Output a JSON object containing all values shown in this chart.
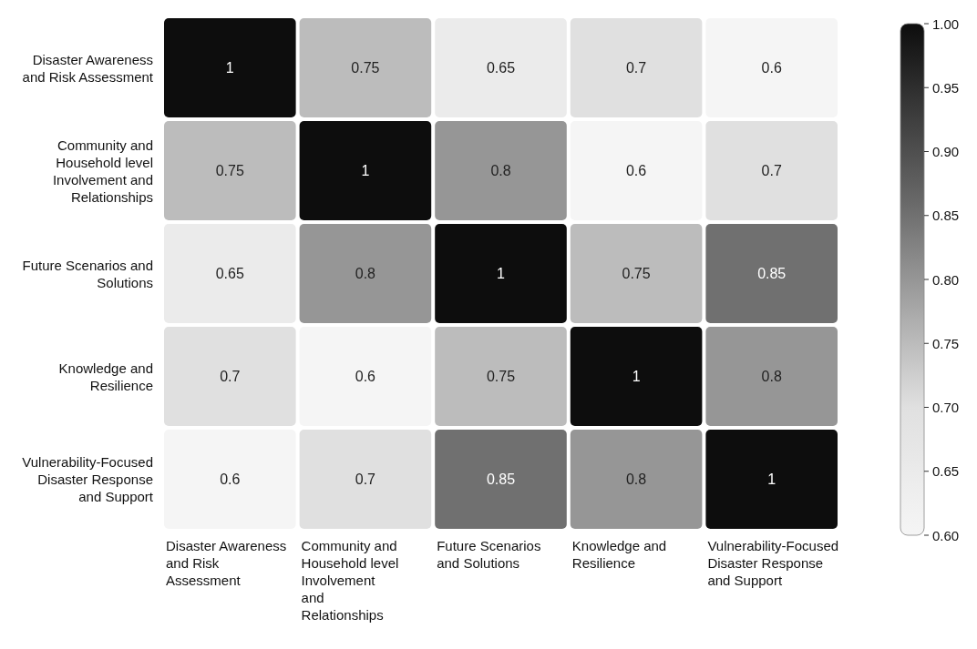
{
  "chart_data": {
    "type": "heatmap",
    "categories": [
      "Disaster Awareness and Risk Assessment",
      "Community and Household level Involvement and Relationships",
      "Future Scenarios and Solutions",
      "Knowledge and Resilience",
      "Vulnerability-Focused Disaster Response and Support"
    ],
    "y_categories": [
      "Disaster Awareness and Risk Assessment",
      "Community and Household level Involvement and Relationships",
      "Future Scenarios and Solutions",
      "Knowledge and Resilience",
      "Vulnerability-Focused Disaster Response and Support"
    ],
    "cells": [
      [
        1,
        0.75,
        0.65,
        0.7,
        0.6
      ],
      [
        0.75,
        1,
        0.8,
        0.6,
        0.7
      ],
      [
        0.65,
        0.8,
        1,
        0.75,
        0.85
      ],
      [
        0.7,
        0.6,
        0.75,
        1,
        0.8
      ],
      [
        0.6,
        0.7,
        0.85,
        0.8,
        1
      ]
    ],
    "data_labels": true,
    "clim": [
      0.6,
      1.0
    ],
    "cticks": [
      {
        "value": 0.6,
        "label": "0.60"
      },
      {
        "value": 0.65,
        "label": "0.65"
      },
      {
        "value": 0.7,
        "label": "0.70"
      },
      {
        "value": 0.75,
        "label": "0.75"
      },
      {
        "value": 0.8,
        "label": "0.80"
      },
      {
        "value": 0.85,
        "label": "0.85"
      },
      {
        "value": 0.9,
        "label": "0.90"
      },
      {
        "value": 0.95,
        "label": "0.95"
      },
      {
        "value": 1.0,
        "label": "1.00"
      }
    ]
  }
}
